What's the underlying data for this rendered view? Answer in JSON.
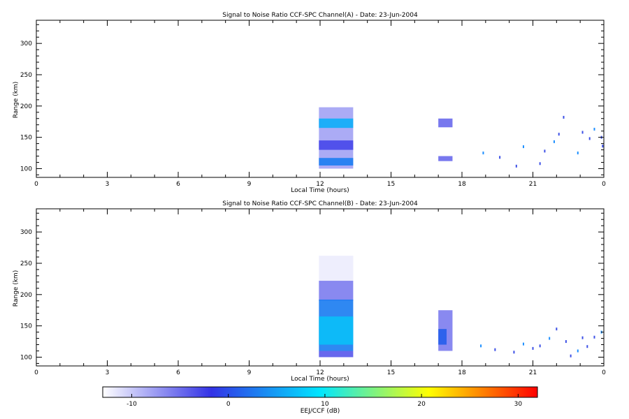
{
  "colors": {
    "background": "#ffffff",
    "axes": "#000000",
    "colormap": [
      "#ffffff",
      "#3232e6",
      "#00e6ff",
      "#ffff00",
      "#ff0000"
    ]
  },
  "chart_data": [
    {
      "type": "heatmap",
      "title": "Signal to Noise Ratio CCF-SPC Channel(A) - Date: 23-Jun-2004",
      "xlabel": "Local Time (hours)",
      "ylabel": "Range (km)",
      "xlim": [
        0,
        24
      ],
      "ylim": [
        86,
        337
      ],
      "x_ticks": [
        "0",
        "3",
        "6",
        "9",
        "12",
        "15",
        "18",
        "21",
        "0"
      ],
      "y_ticks": [
        100,
        150,
        200,
        250,
        300
      ],
      "grid": false,
      "echo_regions": [
        {
          "time": [
            11.95,
            13.4
          ],
          "range": [
            100,
            198
          ],
          "snr_db": -8
        },
        {
          "time": [
            11.95,
            13.4
          ],
          "range": [
            165,
            180
          ],
          "snr_db": 6
        },
        {
          "time": [
            11.95,
            13.4
          ],
          "range": [
            105,
            117
          ],
          "snr_db": 3
        },
        {
          "time": [
            11.95,
            13.4
          ],
          "range": [
            130,
            145
          ],
          "snr_db": -3
        },
        {
          "time": [
            17.0,
            17.6
          ],
          "range": [
            166,
            180
          ],
          "snr_db": -5
        },
        {
          "time": [
            17.0,
            17.6
          ],
          "range": [
            112,
            120
          ],
          "snr_db": -5
        }
      ],
      "scatter_points": [
        {
          "time": 18.9,
          "range": 125
        },
        {
          "time": 19.6,
          "range": 118
        },
        {
          "time": 20.3,
          "range": 104
        },
        {
          "time": 20.6,
          "range": 135
        },
        {
          "time": 21.3,
          "range": 108
        },
        {
          "time": 21.5,
          "range": 128
        },
        {
          "time": 21.9,
          "range": 143
        },
        {
          "time": 22.1,
          "range": 155
        },
        {
          "time": 22.3,
          "range": 182
        },
        {
          "time": 22.9,
          "range": 125
        },
        {
          "time": 23.1,
          "range": 158
        },
        {
          "time": 23.4,
          "range": 148
        },
        {
          "time": 23.6,
          "range": 163
        },
        {
          "time": 23.9,
          "range": 150
        },
        {
          "time": 23.95,
          "range": 136
        }
      ]
    },
    {
      "type": "heatmap",
      "title": "Signal to Noise Ratio CCF-SPC Channel(B) - Date: 23-Jun-2004",
      "xlabel": "Local Time (hours)",
      "ylabel": "Range (km)",
      "xlim": [
        0,
        24
      ],
      "ylim": [
        86,
        337
      ],
      "x_ticks": [
        "0",
        "3",
        "6",
        "9",
        "12",
        "15",
        "18",
        "21",
        "0"
      ],
      "y_ticks": [
        100,
        150,
        200,
        250,
        300
      ],
      "grid": false,
      "echo_regions": [
        {
          "time": [
            11.95,
            13.4
          ],
          "range": [
            220,
            262
          ],
          "snr_db": -12
        },
        {
          "time": [
            11.95,
            13.4
          ],
          "range": [
            190,
            222
          ],
          "snr_db": -6
        },
        {
          "time": [
            11.95,
            13.4
          ],
          "range": [
            110,
            192
          ],
          "snr_db": 3
        },
        {
          "time": [
            11.95,
            13.4
          ],
          "range": [
            120,
            165
          ],
          "snr_db": 7
        },
        {
          "time": [
            11.95,
            13.4
          ],
          "range": [
            100,
            110
          ],
          "snr_db": -4
        },
        {
          "time": [
            17.0,
            17.6
          ],
          "range": [
            110,
            175
          ],
          "snr_db": -6
        },
        {
          "time": [
            17.0,
            17.35
          ],
          "range": [
            120,
            145
          ],
          "snr_db": 1
        }
      ],
      "scatter_points": [
        {
          "time": 18.8,
          "range": 118
        },
        {
          "time": 19.4,
          "range": 112
        },
        {
          "time": 20.2,
          "range": 108
        },
        {
          "time": 20.6,
          "range": 121
        },
        {
          "time": 21.0,
          "range": 114
        },
        {
          "time": 21.3,
          "range": 118
        },
        {
          "time": 21.7,
          "range": 130
        },
        {
          "time": 22.0,
          "range": 145
        },
        {
          "time": 22.4,
          "range": 125
        },
        {
          "time": 22.9,
          "range": 110
        },
        {
          "time": 23.1,
          "range": 131
        },
        {
          "time": 23.6,
          "range": 132
        },
        {
          "time": 23.9,
          "range": 140
        },
        {
          "time": 22.6,
          "range": 102
        },
        {
          "time": 23.3,
          "range": 117
        }
      ]
    }
  ],
  "colorbar": {
    "label": "EEJ/CCF (dB)",
    "range": [
      -13,
      32
    ],
    "ticks": [
      -10,
      0,
      10,
      20,
      30
    ]
  }
}
